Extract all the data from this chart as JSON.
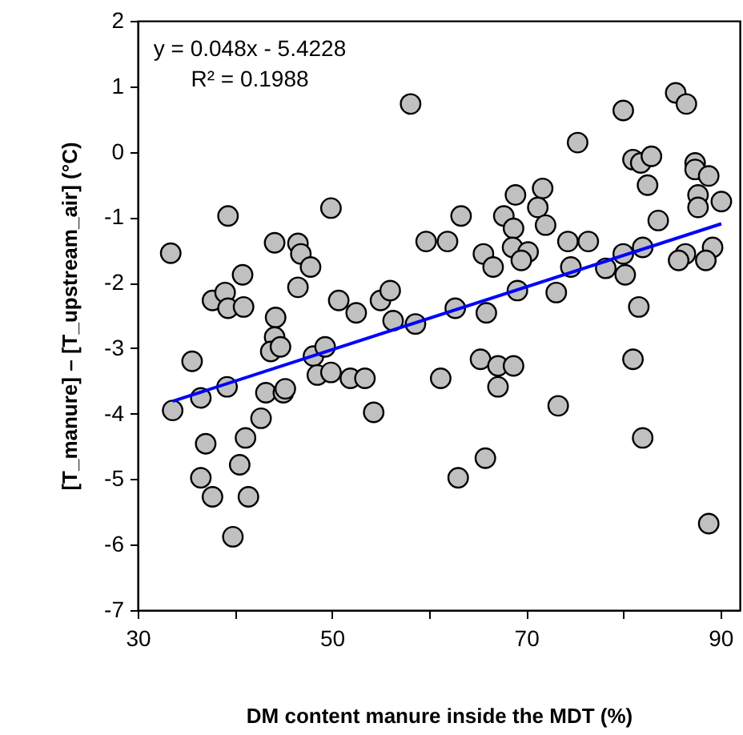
{
  "chart_data": {
    "type": "scatter",
    "xlabel": "DM content manure inside the MDT (%)",
    "ylabel": "[T_manure] – [T_upstream_air] (°C)",
    "annotations": [
      "y = 0.048x - 5.4228",
      "R² = 0.1988"
    ],
    "xlim": [
      30,
      92
    ],
    "xticks": [
      30,
      {
        "value": 40,
        "label": null
      },
      50,
      {
        "value": 60,
        "label": null
      },
      70,
      {
        "value": 80,
        "label": null
      },
      90
    ],
    "ylim": [
      -7,
      2
    ],
    "yticks": [
      -7,
      -6,
      -5,
      -4,
      -3,
      -2,
      -1,
      0,
      1,
      2
    ],
    "grid": false,
    "marker": "circle",
    "series": [
      {
        "color": "#c0c0c0",
        "x": [
          33.4,
          39.3,
          49.9,
          44.1,
          46.5,
          46.8,
          47.8,
          40.8,
          37.7,
          39.0,
          39.3,
          40.9,
          46.5,
          50.7,
          52.5,
          55.0,
          44.2,
          44.1,
          43.7,
          44.7,
          48.1,
          49.3,
          35.6,
          33.6,
          39.2,
          36.5,
          43.2,
          45.0,
          45.2,
          48.5,
          49.9,
          51.9,
          53.4,
          54.3,
          42.7,
          41.1,
          37.0,
          36.5,
          40.5,
          37.7,
          41.4,
          39.8,
          58.1,
          80.0,
          85.4,
          86.5,
          75.3,
          81.0,
          81.8,
          82.9,
          87.4,
          87.4,
          88.8,
          82.5,
          87.7,
          87.7,
          90.1,
          68.9,
          71.7,
          71.2,
          72.0,
          67.7,
          68.7,
          63.3,
          83.6,
          59.7,
          61.9,
          74.3,
          76.4,
          65.6,
          66.6,
          68.6,
          70.2,
          69.5,
          74.6,
          78.2,
          80.0,
          80.2,
          82.0,
          86.4,
          85.7,
          89.2,
          88.5,
          69.1,
          73.1,
          56.0,
          56.3,
          58.6,
          62.7,
          65.9,
          81.6,
          61.2,
          65.3,
          67.1,
          68.7,
          67.1,
          73.3,
          81.0,
          82.0,
          65.8,
          63.0,
          88.8
        ],
        "values": [
          -1.55,
          -0.98,
          -0.86,
          -1.39,
          -1.4,
          -1.56,
          -1.76,
          -1.88,
          -2.27,
          -2.15,
          -2.39,
          -2.37,
          -2.07,
          -2.27,
          -2.46,
          -2.27,
          -2.53,
          -2.83,
          -3.05,
          -2.98,
          -3.12,
          -2.98,
          -3.2,
          -3.95,
          -3.59,
          -3.76,
          -3.68,
          -3.68,
          -3.62,
          -3.41,
          -3.37,
          -3.46,
          -3.46,
          -3.98,
          -4.07,
          -4.37,
          -4.46,
          -4.98,
          -4.78,
          -5.27,
          -5.27,
          -5.88,
          0.73,
          0.63,
          0.9,
          0.73,
          0.14,
          -0.12,
          -0.17,
          -0.07,
          -0.17,
          -0.27,
          -0.37,
          -0.51,
          -0.66,
          -0.85,
          -0.76,
          -0.66,
          -0.56,
          -0.85,
          -1.12,
          -0.98,
          -1.17,
          -0.98,
          -1.05,
          -1.37,
          -1.37,
          -1.37,
          -1.37,
          -1.56,
          -1.76,
          -1.46,
          -1.53,
          -1.66,
          -1.76,
          -1.78,
          -1.56,
          -1.88,
          -1.46,
          -1.56,
          -1.66,
          -1.46,
          -1.66,
          -2.12,
          -2.15,
          -2.12,
          -2.58,
          -2.63,
          -2.39,
          -2.46,
          -2.37,
          -3.46,
          -3.17,
          -3.27,
          -3.27,
          -3.59,
          -3.88,
          -3.17,
          -4.37,
          -4.68,
          -4.98,
          -5.68
        ]
      },
      {
        "type": "line",
        "marker": "none",
        "color": "#0000ff",
        "x": [
          33.6,
          90.1
        ],
        "values": [
          -3.81,
          -1.1
        ]
      }
    ]
  }
}
